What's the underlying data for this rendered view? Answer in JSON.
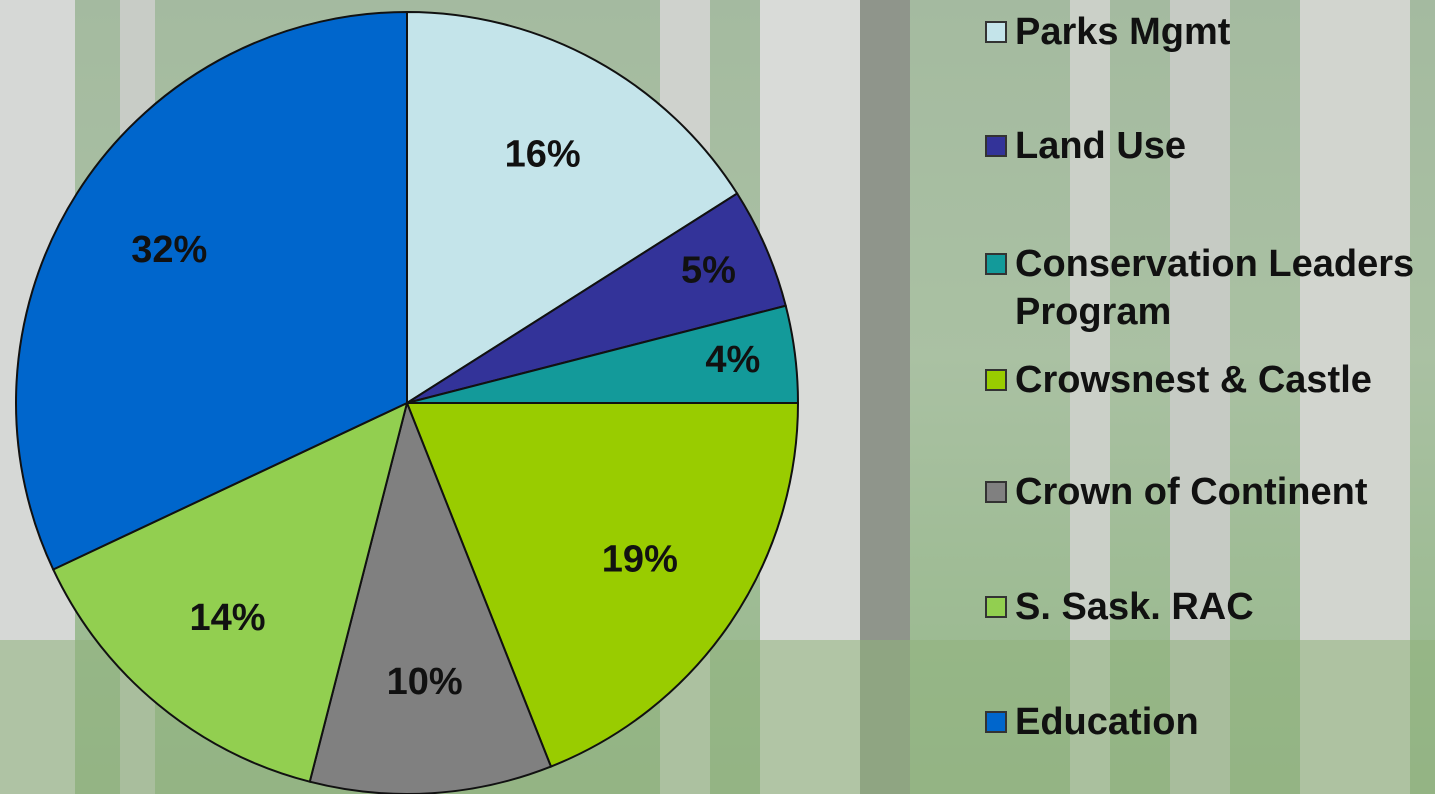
{
  "chart_data": {
    "type": "pie",
    "categories": [
      "Parks Mgmt",
      "Land Use",
      "Conservation Leaders Program",
      "Crowsnest & Castle",
      "Crown of Continent",
      "S. Sask. RAC",
      "Education"
    ],
    "values": [
      16,
      5,
      4,
      19,
      10,
      14,
      32
    ],
    "value_labels": [
      "16%",
      "5%",
      "4%",
      "19%",
      "10%",
      "14%",
      "32%"
    ],
    "colors": [
      "#c4e4ea",
      "#333399",
      "#139a9a",
      "#99cc00",
      "#808080",
      "#92cf50",
      "#0066cc"
    ]
  }
}
